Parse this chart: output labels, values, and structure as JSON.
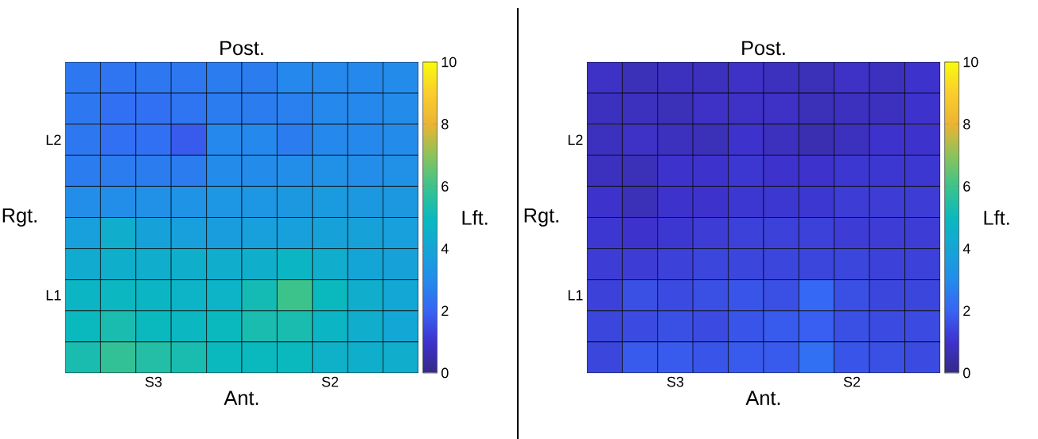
{
  "chart_data": [
    {
      "type": "heatmap",
      "title": "Post.",
      "xlabel": "Ant.",
      "ylabel": "Rgt.",
      "clabel": "Lft.",
      "categories": [
        null,
        null,
        "S3",
        null,
        null,
        null,
        null,
        "S2",
        null,
        null
      ],
      "y_categories": [
        null,
        null,
        "L2",
        null,
        null,
        null,
        null,
        "L1",
        null,
        null
      ],
      "cells": [
        [
          2.5,
          2.4,
          2.5,
          2.5,
          2.6,
          2.6,
          2.9,
          2.9,
          2.9,
          3.0
        ],
        [
          2.5,
          2.3,
          2.3,
          2.4,
          2.6,
          2.6,
          2.7,
          2.9,
          2.9,
          3.0
        ],
        [
          2.5,
          2.3,
          2.3,
          1.8,
          2.9,
          2.9,
          2.6,
          2.9,
          2.9,
          3.0
        ],
        [
          2.6,
          2.6,
          2.6,
          2.6,
          3.0,
          3.0,
          3.1,
          3.2,
          3.1,
          3.2
        ],
        [
          3.1,
          3.1,
          3.2,
          3.3,
          3.4,
          3.4,
          3.5,
          3.6,
          3.5,
          3.5
        ],
        [
          3.8,
          4.4,
          3.9,
          3.8,
          3.7,
          3.8,
          3.8,
          3.9,
          3.9,
          3.8
        ],
        [
          4.3,
          4.5,
          4.4,
          4.5,
          4.4,
          4.5,
          4.8,
          4.4,
          4.0,
          3.9
        ],
        [
          4.8,
          4.9,
          4.8,
          4.7,
          4.7,
          5.2,
          6.0,
          5.0,
          4.4,
          4.1
        ],
        [
          5.0,
          5.3,
          5.0,
          4.9,
          5.0,
          5.3,
          5.3,
          4.8,
          4.4,
          4.1
        ],
        [
          5.3,
          5.8,
          5.5,
          5.3,
          5.0,
          5.0,
          5.0,
          4.6,
          4.5,
          4.4
        ]
      ],
      "clim": [
        0,
        10
      ],
      "cticks": [
        0,
        2,
        4,
        6,
        8,
        10
      ]
    },
    {
      "type": "heatmap",
      "title": "Post.",
      "xlabel": "Ant.",
      "ylabel": "Rgt.",
      "clabel": "Lft.",
      "categories": [
        null,
        null,
        "S3",
        null,
        null,
        null,
        null,
        "S2",
        null,
        null
      ],
      "y_categories": [
        null,
        null,
        "L2",
        null,
        null,
        null,
        null,
        "L1",
        null,
        null
      ],
      "cells": [
        [
          0.9,
          0.7,
          0.8,
          0.8,
          0.9,
          0.8,
          0.7,
          0.9,
          0.8,
          1.0
        ],
        [
          0.8,
          0.8,
          0.7,
          0.9,
          0.9,
          0.9,
          0.7,
          0.8,
          0.8,
          1.0
        ],
        [
          0.8,
          0.9,
          0.8,
          0.7,
          1.0,
          0.8,
          0.6,
          0.8,
          1.0,
          1.0
        ],
        [
          0.8,
          0.7,
          1.0,
          1.0,
          1.1,
          1.0,
          1.0,
          1.1,
          1.1,
          1.1
        ],
        [
          1.0,
          0.7,
          1.0,
          1.0,
          1.1,
          1.1,
          1.1,
          1.2,
          1.2,
          1.2
        ],
        [
          1.1,
          1.0,
          1.1,
          1.2,
          1.3,
          1.3,
          1.3,
          1.2,
          1.2,
          1.2
        ],
        [
          1.2,
          1.2,
          1.3,
          1.4,
          1.4,
          1.4,
          1.4,
          1.4,
          1.3,
          1.3
        ],
        [
          1.3,
          1.6,
          1.5,
          1.6,
          1.7,
          1.6,
          2.1,
          1.6,
          1.4,
          1.4
        ],
        [
          1.4,
          1.5,
          1.6,
          1.5,
          1.7,
          1.8,
          1.9,
          1.6,
          1.5,
          1.5
        ],
        [
          1.4,
          1.8,
          1.8,
          1.7,
          1.8,
          1.8,
          2.3,
          1.7,
          1.6,
          1.5
        ]
      ],
      "clim": [
        0,
        10
      ],
      "cticks": [
        0,
        2,
        4,
        6,
        8,
        10
      ]
    }
  ]
}
